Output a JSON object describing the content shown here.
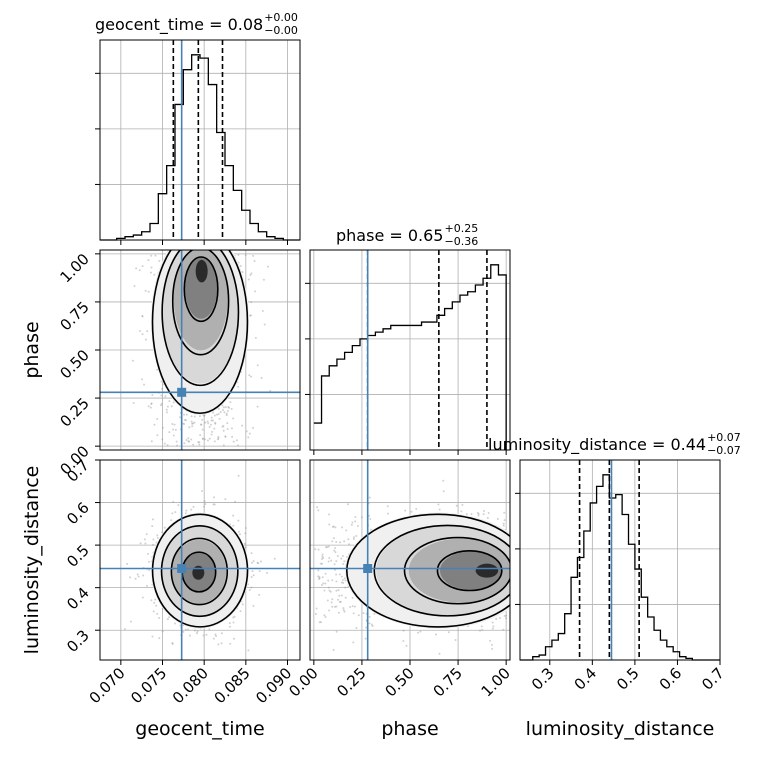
{
  "chart_data": {
    "type": "corner",
    "parameters": [
      "geocent_time",
      "phase",
      "luminosity_distance"
    ],
    "truths": {
      "geocent_time": 0.0773,
      "phase": 0.28,
      "luminosity_distance": 0.445
    },
    "titles": [
      {
        "name": "geocent_time",
        "median": "0.08",
        "upper": "+0.00",
        "lower": "−0.00"
      },
      {
        "name": "phase",
        "median": "0.65",
        "upper": "+0.25",
        "lower": "−0.36"
      },
      {
        "name": "luminosity_distance",
        "median": "0.44",
        "upper": "+0.07",
        "lower": "−0.07"
      }
    ],
    "axes": {
      "geocent_time": {
        "range": [
          0.0675,
          0.0915
        ],
        "ticks": [
          0.07,
          0.075,
          0.08,
          0.085,
          0.09
        ],
        "tick_labels": [
          "0.070",
          "0.075",
          "0.080",
          "0.085",
          "0.090"
        ],
        "label": "geocent_time"
      },
      "phase": {
        "range": [
          -0.02,
          1.02
        ],
        "ticks": [
          0.0,
          0.25,
          0.5,
          0.75,
          1.0
        ],
        "tick_labels": [
          "0.00",
          "0.25",
          "0.50",
          "0.75",
          "1.00"
        ],
        "label": "phase"
      },
      "luminosity_distance": {
        "range": [
          0.23,
          0.7
        ],
        "ticks": [
          0.3,
          0.4,
          0.5,
          0.6,
          0.7
        ],
        "tick_labels": [
          "0.3",
          "0.4",
          "0.5",
          "0.6",
          "0.7"
        ],
        "label": "luminosity_distance"
      }
    },
    "histograms": {
      "geocent_time": {
        "quantiles": [
          0.0763,
          0.0793,
          0.0822
        ],
        "edges": [
          0.0675,
          0.0685,
          0.0695,
          0.0705,
          0.0715,
          0.0725,
          0.0735,
          0.0745,
          0.0755,
          0.0765,
          0.0775,
          0.0785,
          0.0795,
          0.0805,
          0.0815,
          0.0825,
          0.0835,
          0.0845,
          0.0855,
          0.0865,
          0.0875,
          0.0885,
          0.0895,
          0.0905,
          0.0915
        ],
        "counts": [
          0,
          0,
          1,
          2,
          3,
          5,
          10,
          28,
          45,
          82,
          103,
          112,
          110,
          94,
          65,
          45,
          30,
          18,
          10,
          5,
          2,
          1,
          0,
          0
        ]
      },
      "phase": {
        "quantiles": [
          0.28,
          0.65,
          0.9
        ],
        "edges": [
          0.0,
          0.04,
          0.08,
          0.12,
          0.16,
          0.2,
          0.24,
          0.28,
          0.32,
          0.36,
          0.4,
          0.44,
          0.48,
          0.52,
          0.56,
          0.6,
          0.64,
          0.68,
          0.72,
          0.76,
          0.8,
          0.84,
          0.88,
          0.92,
          0.96,
          1.0
        ],
        "counts": [
          8,
          22,
          25,
          27,
          29,
          31,
          33,
          34,
          35,
          36,
          37,
          37,
          37,
          37,
          38,
          38,
          40,
          42,
          44,
          46,
          47,
          49,
          51,
          55,
          52
        ]
      },
      "luminosity_distance": {
        "quantiles": [
          0.37,
          0.44,
          0.51
        ],
        "edges": [
          0.23,
          0.245,
          0.26,
          0.275,
          0.29,
          0.305,
          0.32,
          0.335,
          0.35,
          0.365,
          0.38,
          0.395,
          0.41,
          0.425,
          0.44,
          0.455,
          0.47,
          0.485,
          0.5,
          0.515,
          0.53,
          0.545,
          0.56,
          0.575,
          0.59,
          0.605,
          0.62,
          0.635,
          0.65,
          0.665,
          0.68,
          0.695,
          0.7
        ],
        "counts": [
          0,
          0,
          2,
          3,
          8,
          12,
          16,
          28,
          50,
          62,
          78,
          95,
          105,
          112,
          98,
          100,
          88,
          70,
          55,
          38,
          26,
          18,
          12,
          8,
          5,
          2,
          1,
          0,
          0,
          0,
          0,
          0
        ]
      }
    },
    "posteriors_2d": [
      {
        "x": "geocent_time",
        "y": "phase",
        "center": [
          0.0795,
          0.65
        ],
        "sd": [
          0.0028,
          0.28
        ],
        "peak": [
          0.0797,
          0.91
        ]
      },
      {
        "x": "geocent_time",
        "y": "luminosity_distance",
        "center": [
          0.0795,
          0.44
        ],
        "sd": [
          0.0028,
          0.065
        ],
        "peak": [
          0.0793,
          0.435
        ]
      },
      {
        "x": "phase",
        "y": "luminosity_distance",
        "center": [
          0.65,
          0.44
        ],
        "sd": [
          0.28,
          0.065
        ],
        "peak": [
          0.9,
          0.44
        ]
      }
    ],
    "grid": true
  }
}
